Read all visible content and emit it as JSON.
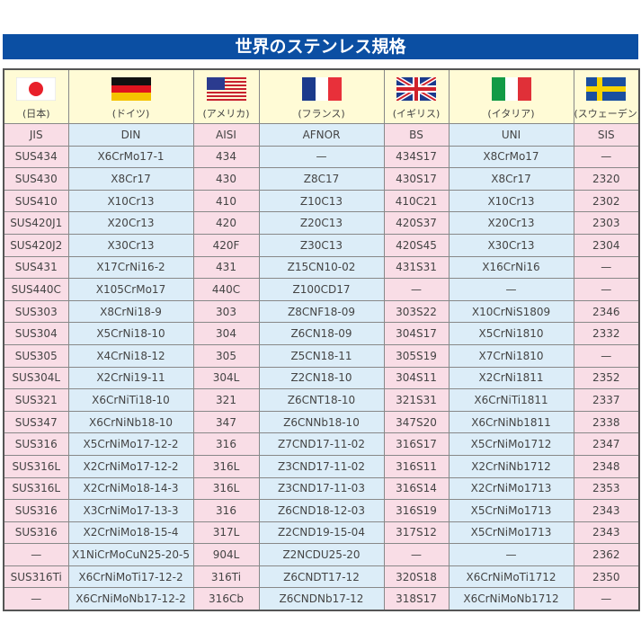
{
  "title": "世界のステンレス規格",
  "countries": [
    "(日本)",
    "(ドイツ)",
    "(アメリカ)",
    "(フランス)",
    "(イギリス)",
    "(イタリア)",
    "(スウェーデン)"
  ],
  "flags": [
    "japan-flag-icon",
    "germany-flag-icon",
    "usa-flag-icon",
    "france-flag-icon",
    "uk-flag-icon",
    "italy-flag-icon",
    "sweden-flag-icon"
  ],
  "standards": [
    "JIS",
    "DIN",
    "AISI",
    "AFNOR",
    "BS",
    "UNI",
    "SIS"
  ],
  "rows": [
    [
      "SUS434",
      "X6CrMo17-1",
      "434",
      "—",
      "434S17",
      "X8CrMo17",
      "—"
    ],
    [
      "SUS430",
      "X8Cr17",
      "430",
      "Z8C17",
      "430S17",
      "X8Cr17",
      "2320"
    ],
    [
      "SUS410",
      "X10Cr13",
      "410",
      "Z10C13",
      "410C21",
      "X10Cr13",
      "2302"
    ],
    [
      "SUS420J1",
      "X20Cr13",
      "420",
      "Z20C13",
      "420S37",
      "X20Cr13",
      "2303"
    ],
    [
      "SUS420J2",
      "X30Cr13",
      "420F",
      "Z30C13",
      "420S45",
      "X30Cr13",
      "2304"
    ],
    [
      "SUS431",
      "X17CrNi16-2",
      "431",
      "Z15CN10-02",
      "431S31",
      "X16CrNi16",
      "—"
    ],
    [
      "SUS440C",
      "X105CrMo17",
      "440C",
      "Z100CD17",
      "—",
      "—",
      "—"
    ],
    [
      "SUS303",
      "X8CrNi18-9",
      "303",
      "Z8CNF18-09",
      "303S22",
      "X10CrNiS1809",
      "2346"
    ],
    [
      "SUS304",
      "X5CrNi18-10",
      "304",
      "Z6CN18-09",
      "304S17",
      "X5CrNi1810",
      "2332"
    ],
    [
      "SUS305",
      "X4CrNi18-12",
      "305",
      "Z5CN18-11",
      "305S19",
      "X7CrNi1810",
      "—"
    ],
    [
      "SUS304L",
      "X2CrNi19-11",
      "304L",
      "Z2CN18-10",
      "304S11",
      "X2CrNi1811",
      "2352"
    ],
    [
      "SUS321",
      "X6CrNiTi18-10",
      "321",
      "Z6CNT18-10",
      "321S31",
      "X6CrNiTi1811",
      "2337"
    ],
    [
      "SUS347",
      "X6CrNiNb18-10",
      "347",
      "Z6CNNb18-10",
      "347S20",
      "X6CrNiNb1811",
      "2338"
    ],
    [
      "SUS316",
      "X5CrNiMo17-12-2",
      "316",
      "Z7CND17-11-02",
      "316S17",
      "X5CrNiMo1712",
      "2347"
    ],
    [
      "SUS316L",
      "X2CrNiMo17-12-2",
      "316L",
      "Z3CND17-11-02",
      "316S11",
      "X2CrNiNb1712",
      "2348"
    ],
    [
      "SUS316L",
      "X2CrNiMo18-14-3",
      "316L",
      "Z3CND17-11-03",
      "316S14",
      "X2CrNiMo1713",
      "2353"
    ],
    [
      "SUS316",
      "X3CrNiMo17-13-3",
      "316",
      "Z6CND18-12-03",
      "316S19",
      "X5CrNiMo1713",
      "2343"
    ],
    [
      "SUS316",
      "X2CrNiMo18-15-4",
      "317L",
      "Z2CND19-15-04",
      "317S12",
      "X5CrNiMo1713",
      "2343"
    ],
    [
      "—",
      "X1NiCrMoCuN25-20-5",
      "904L",
      "Z2NCDU25-20",
      "—",
      "—",
      "2362"
    ],
    [
      "SUS316Ti",
      "X6CrNiMoTi17-12-2",
      "316Ti",
      "Z6CNDT17-12",
      "320S18",
      "X6CrNiMoTi1712",
      "2350"
    ],
    [
      "—",
      "X6CrNiMoNb17-12-2",
      "316Cb",
      "Z6CNDNb17-12",
      "318S17",
      "X6CrNiMoNb1712",
      "—"
    ]
  ]
}
